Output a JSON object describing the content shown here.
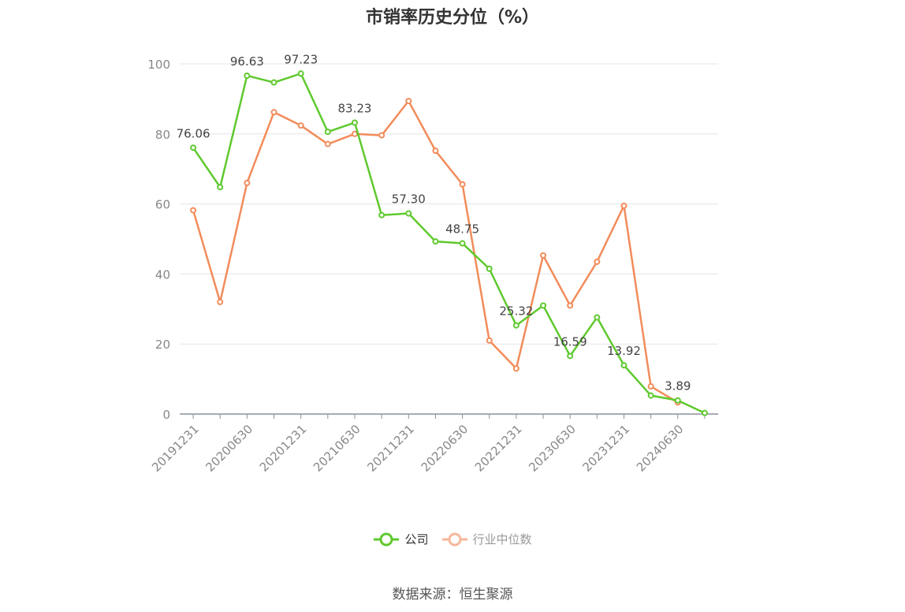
{
  "chart_data": {
    "type": "line",
    "title": "市销率历史分位（%）",
    "x": [
      "20191231",
      "20200331",
      "20200630",
      "20200930",
      "20201231",
      "20210331",
      "20210630",
      "20210930",
      "20211231",
      "20220331",
      "20220630",
      "20220930",
      "20221231",
      "20230331",
      "20230630",
      "20230930",
      "20231231",
      "20240331",
      "20240630",
      "20240930"
    ],
    "x_tick_labels": [
      "20191231",
      "20200630",
      "20201231",
      "20210630",
      "20211231",
      "20220630",
      "20221231",
      "20230630",
      "20231231",
      "20240630"
    ],
    "ylim": [
      0,
      100
    ],
    "y_ticks": [
      0,
      20,
      40,
      60,
      80,
      100
    ],
    "grid": true,
    "legend_position": "bottom",
    "series": [
      {
        "name": "公司",
        "color": "#5fc92e",
        "values": [
          76.06,
          64.8,
          96.63,
          94.7,
          97.23,
          80.6,
          83.23,
          56.8,
          57.3,
          49.3,
          48.75,
          41.5,
          25.32,
          31.0,
          16.59,
          27.6,
          13.92,
          5.3,
          3.89,
          0.3
        ],
        "data_labels": {
          "0": "76.06",
          "2": "96.63",
          "4": "97.23",
          "6": "83.23",
          "8": "57.30",
          "10": "48.75",
          "12": "25.32",
          "14": "16.59",
          "16": "13.92",
          "18": "3.89"
        }
      },
      {
        "name": "行业中位数",
        "color": "#f28c5b",
        "values": [
          58.2,
          32.0,
          66.0,
          86.2,
          82.4,
          77.1,
          80.0,
          79.6,
          89.4,
          75.2,
          65.6,
          21.0,
          13.0,
          45.3,
          31.0,
          43.5,
          59.5,
          7.9,
          3.3,
          null
        ]
      }
    ]
  },
  "legend": {
    "company": "公司",
    "industry": "行业中位数"
  },
  "footer": {
    "source": "数据来源：恒生聚源"
  }
}
